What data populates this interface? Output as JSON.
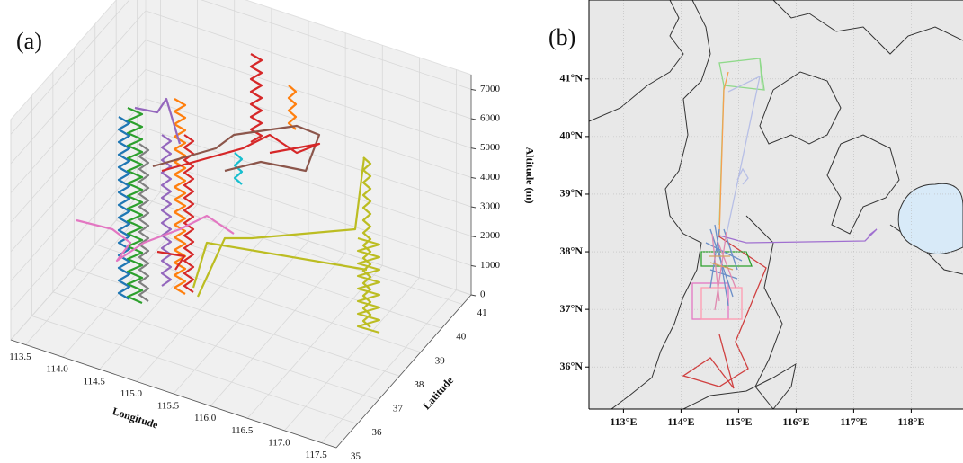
{
  "chart_data": [
    {
      "type": "trajectory3d",
      "panel_label": "(a)",
      "xlabel": "Longitude",
      "ylabel": "Latitude",
      "zlabel": "Altitude (m)",
      "xlim": [
        113.3,
        117.7
      ],
      "xticks": [
        113.5,
        {
          "value": 114,
          "label": "114.0"
        },
        114.5,
        {
          "value": 115,
          "label": "115.0"
        },
        115.5,
        {
          "value": 116,
          "label": "116.0"
        },
        116.5,
        {
          "value": 117,
          "label": "117.0"
        },
        117.5
      ],
      "ylim": [
        35,
        41.4
      ],
      "yticks": [
        35,
        36,
        37,
        38,
        39,
        40,
        41
      ],
      "zlim": [
        0,
        7500
      ],
      "zticks": [
        0,
        1000,
        2000,
        3000,
        4000,
        5000,
        6000,
        7000
      ],
      "grid": true
    },
    {
      "type": "map",
      "panel_label": "(b)",
      "xlim": [
        112.4,
        118.9
      ],
      "xticks": [
        {
          "value": 113,
          "label": "113°E"
        },
        {
          "value": 114,
          "label": "114°E"
        },
        {
          "value": 115,
          "label": "115°E"
        },
        {
          "value": 116,
          "label": "116°E"
        },
        {
          "value": 117,
          "label": "117°E"
        },
        {
          "value": 118,
          "label": "118°E"
        }
      ],
      "ylim": [
        35.27,
        42.37
      ],
      "yticks": [
        {
          "value": 36,
          "label": "36°N"
        },
        {
          "value": 37,
          "label": "37°N"
        },
        {
          "value": 38,
          "label": "38°N"
        },
        {
          "value": 39,
          "label": "39°N"
        },
        {
          "value": 40,
          "label": "40°N"
        },
        {
          "value": 41,
          "label": "41°N"
        }
      ],
      "grid": true
    }
  ]
}
